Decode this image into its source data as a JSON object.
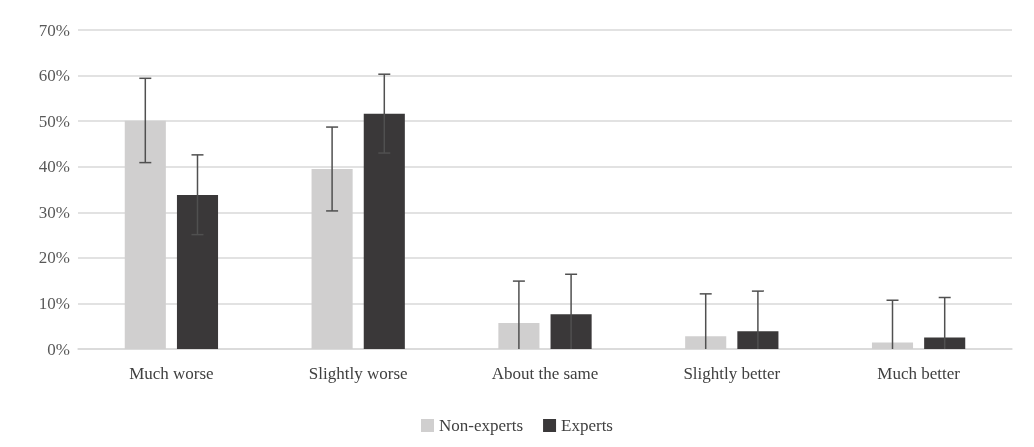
{
  "chart_data": {
    "type": "bar",
    "categories": [
      "Much worse",
      "Slightly worse",
      "About the same",
      "Slightly better",
      "Much better"
    ],
    "series": [
      {
        "name": "Non-experts",
        "color": "#d0cfcf",
        "values": [
          50.1,
          39.5,
          5.7,
          2.8,
          1.4
        ],
        "errors": [
          [
            40.9,
            59.4
          ],
          [
            30.3,
            48.7
          ],
          [
            0,
            14.9
          ],
          [
            0,
            12.1
          ],
          [
            0,
            10.7
          ]
        ]
      },
      {
        "name": "Experts",
        "color": "#3a3839",
        "values": [
          33.8,
          51.6,
          7.6,
          3.9,
          2.5
        ],
        "errors": [
          [
            25.1,
            42.6
          ],
          [
            43.0,
            60.3
          ],
          [
            0,
            16.4
          ],
          [
            0,
            12.7
          ],
          [
            0,
            11.3
          ]
        ]
      }
    ],
    "ylim": [
      0,
      70
    ],
    "yticks": [
      {
        "value": 0,
        "label": "0%"
      },
      {
        "value": 10,
        "label": "10%"
      },
      {
        "value": 20,
        "label": "20%"
      },
      {
        "value": 30,
        "label": "30%"
      },
      {
        "value": 40,
        "label": "40%"
      },
      {
        "value": 50,
        "label": "50%"
      },
      {
        "value": 60,
        "label": "60%"
      },
      {
        "value": 70,
        "label": "70%"
      }
    ],
    "grid": "y",
    "legend": "bottom"
  }
}
